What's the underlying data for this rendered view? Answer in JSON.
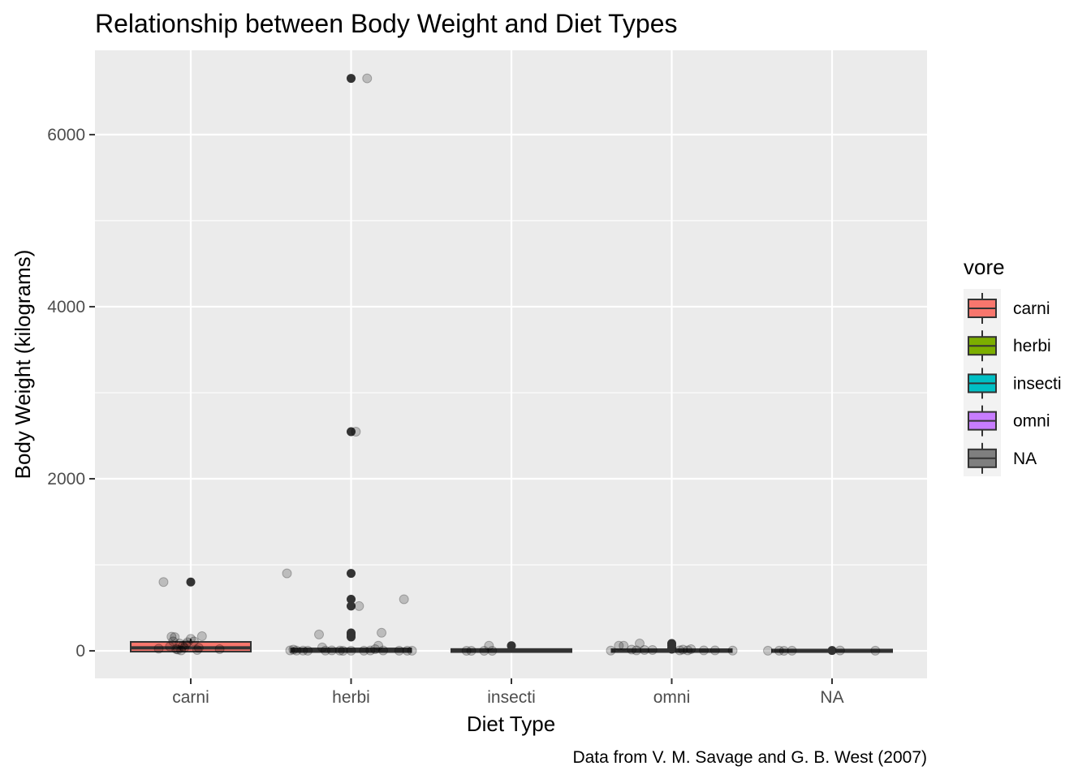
{
  "chart_data": {
    "type": "box",
    "title": "Relationship between Body Weight and Diet Types",
    "xlabel": "Diet Type",
    "ylabel": "Body Weight (kilograms)",
    "caption": "Data from V. M. Savage and G. B. West (2007)",
    "categories": [
      "carni",
      "herbi",
      "insecti",
      "omni",
      "NA"
    ],
    "ylim": [
      -320,
      6980
    ],
    "yticks": [
      0,
      2000,
      4000,
      6000
    ],
    "grid": true,
    "legend": {
      "title": "vore",
      "position": "right",
      "entries": [
        {
          "label": "carni",
          "color": "#F8766D"
        },
        {
          "label": "herbi",
          "color": "#7CAE00"
        },
        {
          "label": "insecti",
          "color": "#00BFC4"
        },
        {
          "label": "omni",
          "color": "#C77CFF"
        },
        {
          "label": "NA",
          "color": "#7F7F7F"
        }
      ]
    },
    "boxes": [
      {
        "category": "carni",
        "q1": 5,
        "median": 35,
        "q3": 90,
        "whisker_low": 0.1,
        "whisker_high": 140,
        "outliers": [
          800
        ]
      },
      {
        "category": "herbi",
        "q1": 0.5,
        "median": 1,
        "q3": 14,
        "whisker_low": 0.005,
        "whisker_high": 30,
        "outliers": [
          6654,
          2547,
          900,
          600,
          521,
          208,
          187,
          161
        ]
      },
      {
        "category": "insecti",
        "q1": 0.01,
        "median": 0.1,
        "q3": 7,
        "whisker_low": 0.01,
        "whisker_high": 8,
        "outliers": [
          60
        ]
      },
      {
        "category": "omni",
        "q1": 0.5,
        "median": 1,
        "q3": 5,
        "whisker_low": 0.005,
        "whisker_high": 15,
        "outliers": [
          86,
          62,
          30,
          20
        ]
      },
      {
        "category": "NA",
        "q1": 0.05,
        "median": 0.2,
        "q3": 1,
        "whisker_low": 0.02,
        "whisker_high": 3.5,
        "outliers": [
          4
        ]
      }
    ],
    "jitter_points": [
      {
        "category": "carni",
        "points": [
          [
            -0.2,
            25
          ],
          [
            -0.17,
            800
          ],
          [
            -0.13,
            50
          ],
          [
            -0.12,
            165
          ],
          [
            -0.11,
            110
          ],
          [
            -0.1,
            160
          ],
          [
            -0.09,
            20
          ],
          [
            -0.08,
            15
          ],
          [
            -0.07,
            85
          ],
          [
            -0.06,
            5
          ],
          [
            -0.05,
            55
          ],
          [
            -0.04,
            35
          ],
          [
            -0.03,
            75
          ],
          [
            -0.02,
            100
          ],
          [
            0.0,
            140
          ],
          [
            0.02,
            110
          ],
          [
            0.04,
            10
          ],
          [
            0.05,
            35
          ],
          [
            0.07,
            170
          ],
          [
            0.18,
            20
          ]
        ]
      },
      {
        "category": "herbi",
        "points": [
          [
            -0.4,
            900
          ],
          [
            -0.38,
            5
          ],
          [
            -0.36,
            15
          ],
          [
            -0.34,
            3
          ],
          [
            -0.3,
            3
          ],
          [
            -0.27,
            2
          ],
          [
            -0.2,
            190
          ],
          [
            -0.18,
            40
          ],
          [
            -0.16,
            3
          ],
          [
            -0.12,
            5
          ],
          [
            -0.07,
            3
          ],
          [
            -0.05,
            1
          ],
          [
            0.0,
            2
          ],
          [
            0.03,
            2547
          ],
          [
            0.05,
            520
          ],
          [
            0.08,
            2
          ],
          [
            0.1,
            6654
          ],
          [
            0.12,
            4
          ],
          [
            0.15,
            20
          ],
          [
            0.17,
            60
          ],
          [
            0.19,
            210
          ],
          [
            0.2,
            4
          ],
          [
            0.3,
            2
          ],
          [
            0.33,
            600
          ],
          [
            0.35,
            2
          ],
          [
            0.38,
            2
          ]
        ]
      },
      {
        "category": "insecti",
        "points": [
          [
            -0.28,
            1
          ],
          [
            -0.25,
            1
          ],
          [
            -0.17,
            1
          ],
          [
            -0.14,
            60
          ],
          [
            -0.12,
            1
          ]
        ]
      },
      {
        "category": "omni",
        "points": [
          [
            -0.38,
            3
          ],
          [
            -0.33,
            60
          ],
          [
            -0.3,
            60
          ],
          [
            -0.25,
            15
          ],
          [
            -0.22,
            5
          ],
          [
            -0.2,
            85
          ],
          [
            -0.17,
            10
          ],
          [
            -0.12,
            10
          ],
          [
            0.05,
            5
          ],
          [
            0.07,
            15
          ],
          [
            0.1,
            5
          ],
          [
            0.12,
            20
          ],
          [
            0.2,
            5
          ],
          [
            0.27,
            5
          ],
          [
            0.38,
            3
          ]
        ]
      },
      {
        "category": "NA",
        "points": [
          [
            -0.4,
            2
          ],
          [
            -0.33,
            2
          ],
          [
            -0.3,
            1
          ],
          [
            -0.25,
            2
          ],
          [
            0.05,
            4
          ],
          [
            0.27,
            2
          ]
        ]
      }
    ]
  }
}
